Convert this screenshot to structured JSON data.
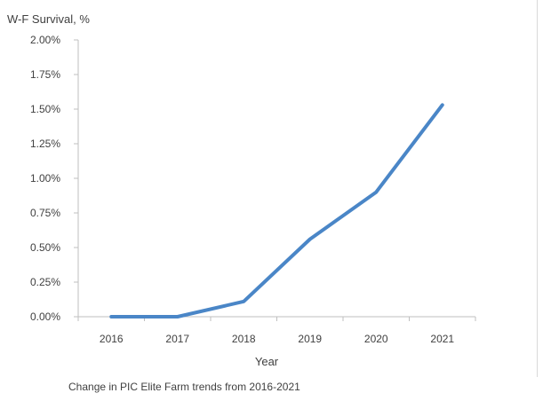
{
  "chart_data": {
    "type": "line",
    "title": "W-F Survival, %",
    "xlabel": "Year",
    "ylabel": "",
    "caption": "Change in PIC Elite Farm trends from 2016-2021",
    "categories": [
      "2016",
      "2017",
      "2018",
      "2019",
      "2020",
      "2021"
    ],
    "ylim": [
      0,
      2.0
    ],
    "yticks": [
      "0.00%",
      "0.25%",
      "0.50%",
      "0.75%",
      "1.00%",
      "1.25%",
      "1.50%",
      "1.75%",
      "2.00%"
    ],
    "series": [
      {
        "values": [
          0.0,
          0.0,
          0.11,
          0.56,
          0.9,
          1.53
        ],
        "color": "#4a86c7"
      }
    ],
    "grid": false,
    "legend": "none"
  }
}
